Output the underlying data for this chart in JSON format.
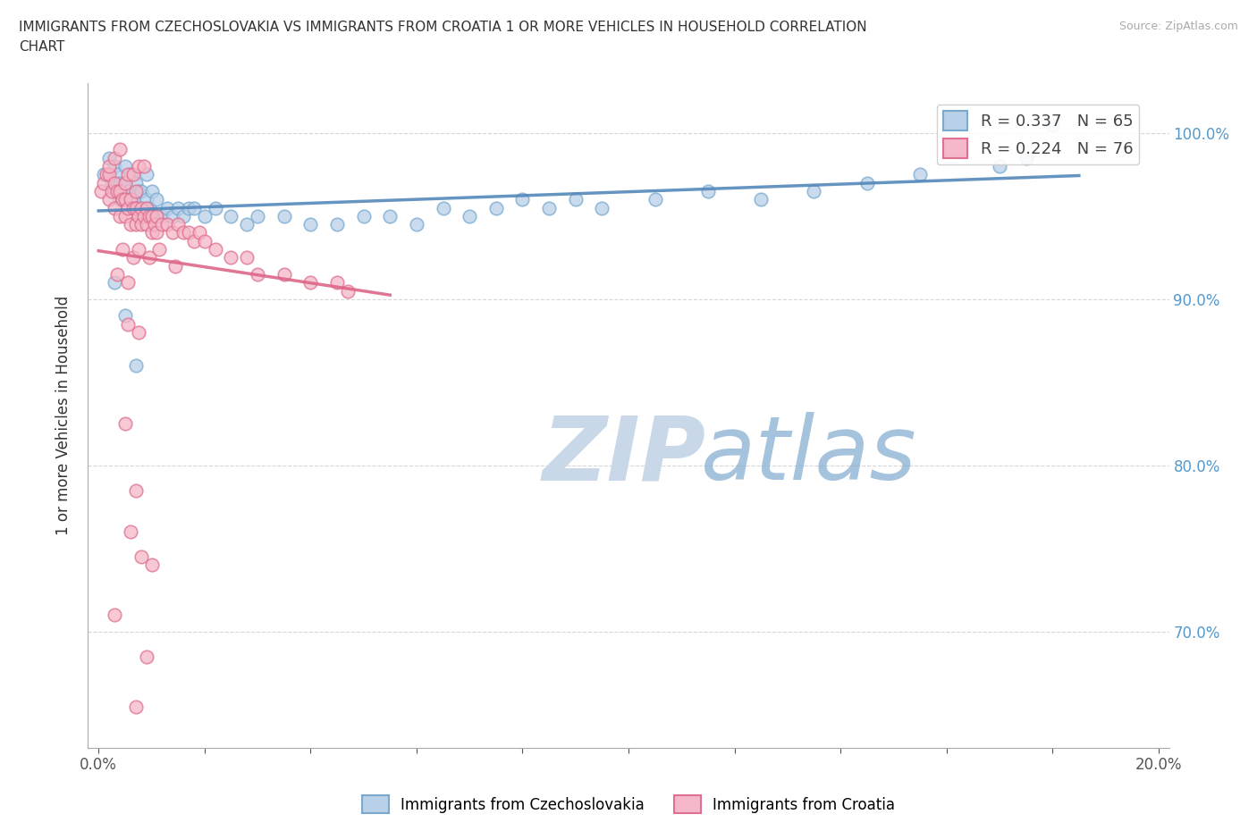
{
  "title_line1": "IMMIGRANTS FROM CZECHOSLOVAKIA VS IMMIGRANTS FROM CROATIA 1 OR MORE VEHICLES IN HOUSEHOLD CORRELATION",
  "title_line2": "CHART",
  "source_text": "Source: ZipAtlas.com",
  "ylabel": "1 or more Vehicles in Household",
  "xlim": [
    -0.2,
    20.2
  ],
  "ylim": [
    63.0,
    103.0
  ],
  "x_ticks": [
    0.0,
    2.0,
    4.0,
    6.0,
    8.0,
    10.0,
    12.0,
    14.0,
    16.0,
    18.0,
    20.0
  ],
  "x_tick_labels_show": [
    "0.0%",
    "",
    "",
    "",
    "",
    "",
    "",
    "",
    "",
    "",
    "20.0%"
  ],
  "y_ticks": [
    70.0,
    80.0,
    90.0,
    100.0
  ],
  "y_tick_labels": [
    "70.0%",
    "80.0%",
    "90.0%",
    "100.0%"
  ],
  "r_czecho": 0.337,
  "n_czecho": 65,
  "r_croatia": 0.224,
  "n_croatia": 76,
  "color_czecho": "#b8d0e8",
  "color_croatia": "#f5b8c8",
  "edge_czecho": "#7aaad0",
  "edge_croatia": "#e07090",
  "trendline_czecho": "#5588bb",
  "trendline_croatia": "#dd6688",
  "legend_label_czecho": "Immigrants from Czechoslovakia",
  "legend_label_croatia": "Immigrants from Croatia",
  "watermark_zip": "ZIP",
  "watermark_atlas": "atlas",
  "watermark_color_zip": "#c8d8e8",
  "watermark_color_atlas": "#80aad0",
  "czecho_x": [
    0.1,
    0.2,
    0.25,
    0.3,
    0.3,
    0.35,
    0.4,
    0.4,
    0.45,
    0.5,
    0.5,
    0.55,
    0.6,
    0.6,
    0.65,
    0.7,
    0.7,
    0.75,
    0.8,
    0.8,
    0.85,
    0.9,
    0.9,
    0.95,
    1.0,
    1.0,
    1.1,
    1.1,
    1.2,
    1.3,
    1.4,
    1.5,
    1.6,
    1.7,
    1.8,
    2.0,
    2.2,
    2.5,
    2.8,
    3.0,
    3.5,
    4.0,
    4.5,
    5.0,
    5.5,
    6.0,
    6.5,
    7.0,
    7.5,
    8.0,
    8.5,
    9.0,
    9.5,
    10.5,
    11.5,
    12.5,
    13.5,
    14.5,
    15.5,
    17.0,
    17.5,
    0.3,
    0.5,
    0.7,
    18.0
  ],
  "czecho_y": [
    97.5,
    98.5,
    97.0,
    96.5,
    98.0,
    97.5,
    96.0,
    97.0,
    96.5,
    97.0,
    98.0,
    96.5,
    96.0,
    97.5,
    96.0,
    95.5,
    97.0,
    96.5,
    95.0,
    96.5,
    95.5,
    96.0,
    97.5,
    95.5,
    95.0,
    96.5,
    95.0,
    96.0,
    95.0,
    95.5,
    95.0,
    95.5,
    95.0,
    95.5,
    95.5,
    95.0,
    95.5,
    95.0,
    94.5,
    95.0,
    95.0,
    94.5,
    94.5,
    95.0,
    95.0,
    94.5,
    95.5,
    95.0,
    95.5,
    96.0,
    95.5,
    96.0,
    95.5,
    96.0,
    96.5,
    96.0,
    96.5,
    97.0,
    97.5,
    98.0,
    98.5,
    91.0,
    89.0,
    86.0,
    100.5
  ],
  "croatia_x": [
    0.05,
    0.1,
    0.15,
    0.2,
    0.2,
    0.25,
    0.3,
    0.3,
    0.35,
    0.4,
    0.4,
    0.45,
    0.5,
    0.5,
    0.5,
    0.55,
    0.6,
    0.6,
    0.65,
    0.7,
    0.7,
    0.7,
    0.75,
    0.8,
    0.8,
    0.85,
    0.9,
    0.9,
    0.95,
    1.0,
    1.0,
    1.05,
    1.1,
    1.1,
    1.2,
    1.3,
    1.4,
    1.5,
    1.6,
    1.7,
    1.8,
    1.9,
    2.0,
    2.2,
    2.5,
    2.8,
    3.0,
    3.5,
    4.0,
    4.5,
    0.2,
    0.3,
    0.4,
    0.55,
    0.65,
    0.75,
    0.85,
    0.35,
    0.55,
    4.7,
    0.45,
    0.65,
    0.75,
    0.95,
    1.15,
    1.45,
    0.55,
    0.75,
    0.5,
    0.7,
    0.6,
    0.8,
    1.0,
    0.3,
    0.9,
    0.7
  ],
  "croatia_y": [
    96.5,
    97.0,
    97.5,
    96.0,
    97.5,
    96.5,
    95.5,
    97.0,
    96.5,
    95.0,
    96.5,
    96.0,
    95.0,
    96.0,
    97.0,
    95.5,
    94.5,
    96.0,
    95.5,
    94.5,
    95.5,
    96.5,
    95.0,
    94.5,
    95.5,
    95.0,
    94.5,
    95.5,
    95.0,
    94.0,
    95.0,
    94.5,
    94.0,
    95.0,
    94.5,
    94.5,
    94.0,
    94.5,
    94.0,
    94.0,
    93.5,
    94.0,
    93.5,
    93.0,
    92.5,
    92.5,
    91.5,
    91.5,
    91.0,
    91.0,
    98.0,
    98.5,
    99.0,
    97.5,
    97.5,
    98.0,
    98.0,
    91.5,
    91.0,
    90.5,
    93.0,
    92.5,
    93.0,
    92.5,
    93.0,
    92.0,
    88.5,
    88.0,
    82.5,
    78.5,
    76.0,
    74.5,
    74.0,
    71.0,
    68.5,
    65.5
  ]
}
